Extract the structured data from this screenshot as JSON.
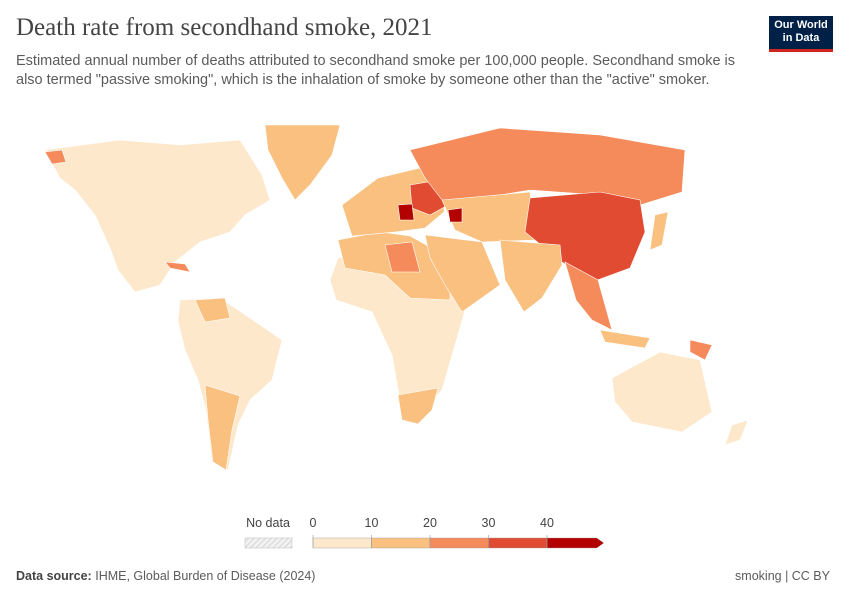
{
  "header": {
    "title": "Death rate from secondhand smoke, 2021",
    "subtitle": "Estimated annual number of deaths attributed to secondhand smoke per 100,000 people. Secondhand smoke is also termed \"passive smoking\", which is the inhalation of smoke by someone other than the \"active\" smoker.",
    "logo": "Our World in Data"
  },
  "legend": {
    "no_data": "No data",
    "ticks": [
      0,
      10,
      20,
      30,
      40
    ],
    "colors": [
      "#fde8cc",
      "#f9c07f",
      "#f58a5b",
      "#e04b31",
      "#b30000"
    ]
  },
  "footer": {
    "source_label": "Data source:",
    "source": "IHME, Global Burden of Disease (2024)",
    "license": "smoking | CC BY"
  }
}
